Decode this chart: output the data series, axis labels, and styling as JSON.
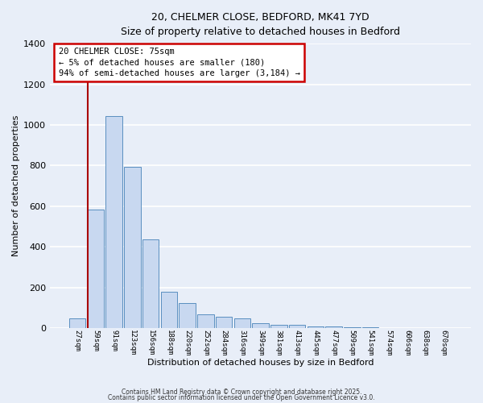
{
  "title_line1": "20, CHELMER CLOSE, BEDFORD, MK41 7YD",
  "title_line2": "Size of property relative to detached houses in Bedford",
  "xlabel": "Distribution of detached houses by size in Bedford",
  "ylabel": "Number of detached properties",
  "bar_labels": [
    "27sqm",
    "59sqm",
    "91sqm",
    "123sqm",
    "156sqm",
    "188sqm",
    "220sqm",
    "252sqm",
    "284sqm",
    "316sqm",
    "349sqm",
    "381sqm",
    "413sqm",
    "445sqm",
    "477sqm",
    "509sqm",
    "541sqm",
    "574sqm",
    "606sqm",
    "638sqm",
    "670sqm"
  ],
  "bar_values": [
    50,
    585,
    1045,
    795,
    435,
    180,
    125,
    70,
    55,
    50,
    25,
    18,
    15,
    10,
    8,
    5,
    3,
    2,
    1,
    1,
    1
  ],
  "bar_color": "#c8d8f0",
  "bar_edge_color": "#5a8fc0",
  "background_color": "#e8eef8",
  "grid_color": "#ffffff",
  "red_line_x": 1.0,
  "ylim": [
    0,
    1400
  ],
  "yticks": [
    0,
    200,
    400,
    600,
    800,
    1000,
    1200,
    1400
  ],
  "annotation_text_line1": "20 CHELMER CLOSE: 75sqm",
  "annotation_text_line2": "← 5% of detached houses are smaller (180)",
  "annotation_text_line3": "94% of semi-detached houses are larger (3,184) →",
  "annotation_box_color": "#ffffff",
  "annotation_border_color": "#cc0000",
  "footer_line1": "Contains HM Land Registry data © Crown copyright and database right 2025.",
  "footer_line2": "Contains public sector information licensed under the Open Government Licence v3.0."
}
